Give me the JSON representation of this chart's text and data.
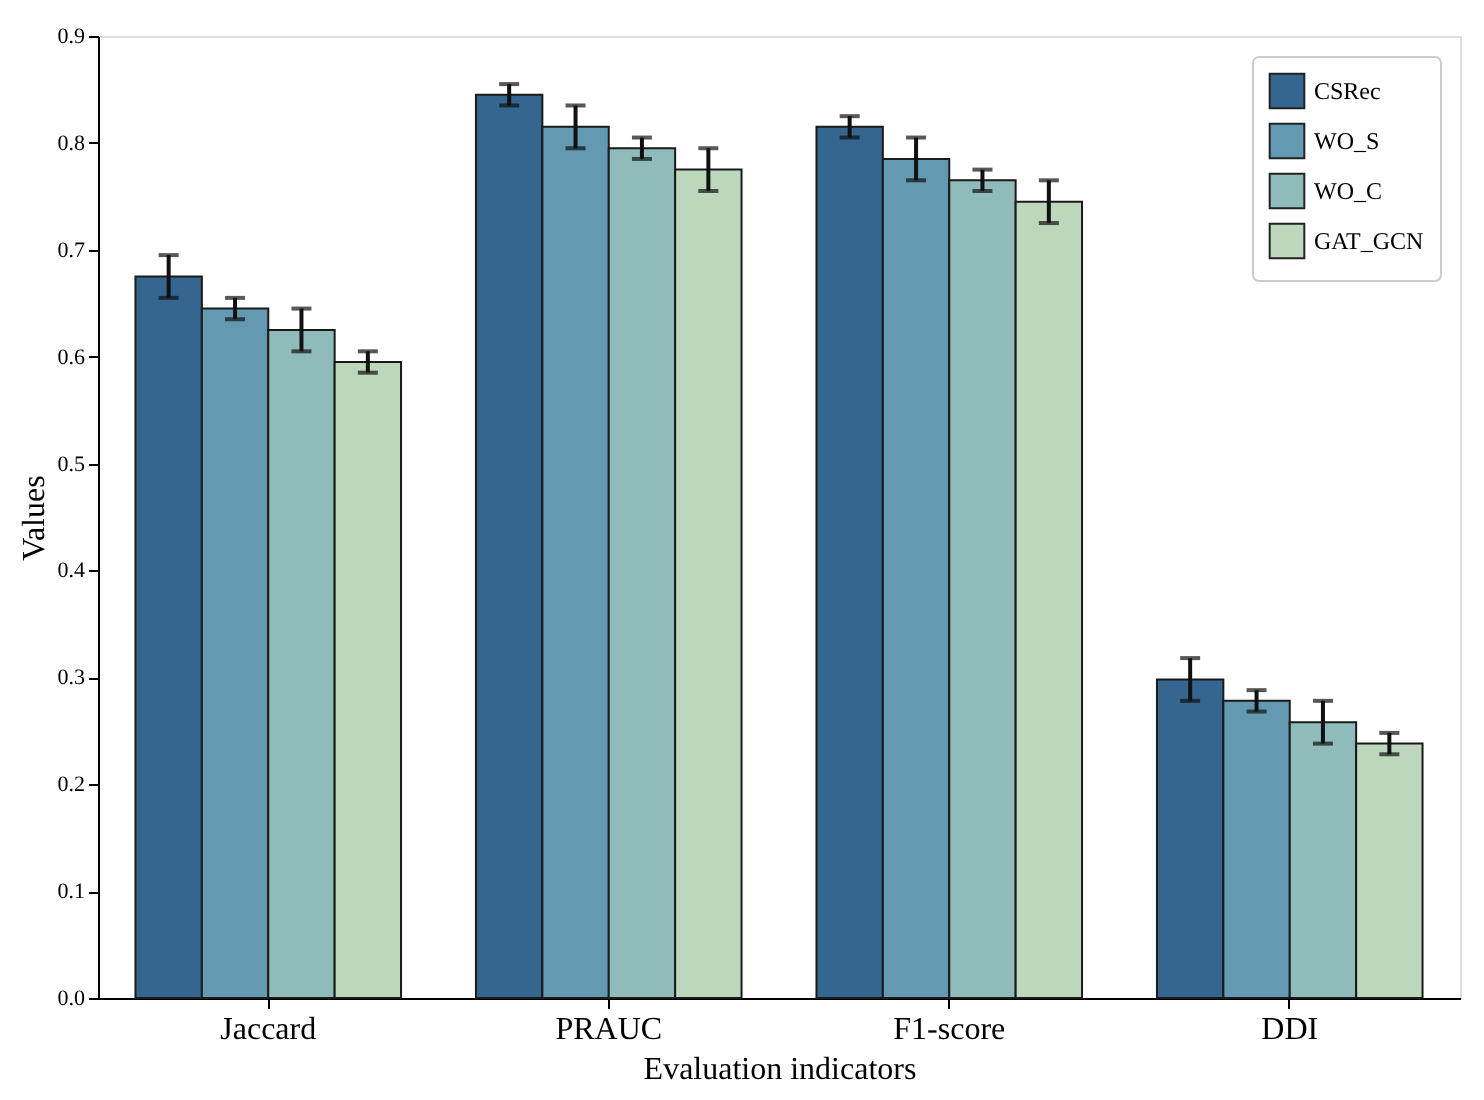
{
  "chart_data": {
    "type": "bar",
    "xlabel": "Evaluation indicators",
    "ylabel": "Values",
    "categories": [
      "Jaccard",
      "PRAUC",
      "F1-score",
      "DDI"
    ],
    "series": [
      {
        "name": "CSRec",
        "color": "#35668f",
        "values": [
          0.675,
          0.845,
          0.815,
          0.298
        ],
        "errors": [
          0.02,
          0.01,
          0.01,
          0.02
        ]
      },
      {
        "name": "WO_S",
        "color": "#6399b1",
        "values": [
          0.645,
          0.815,
          0.785,
          0.278
        ],
        "errors": [
          0.01,
          0.02,
          0.02,
          0.01
        ]
      },
      {
        "name": "WO_C",
        "color": "#8fbcbb",
        "values": [
          0.625,
          0.795,
          0.765,
          0.258
        ],
        "errors": [
          0.02,
          0.01,
          0.01,
          0.02
        ]
      },
      {
        "name": "GAT_GCN",
        "color": "#bcd7bc",
        "values": [
          0.595,
          0.775,
          0.745,
          0.238
        ],
        "errors": [
          0.01,
          0.02,
          0.02,
          0.01
        ]
      }
    ],
    "ylim": [
      0,
      0.9
    ],
    "yticks": [
      {
        "value": 0,
        "label": "0.0"
      },
      {
        "value": 0.1,
        "label": "0.1"
      },
      {
        "value": 0.2,
        "label": "0.2"
      },
      {
        "value": 0.3,
        "label": "0.3"
      },
      {
        "value": 0.4,
        "label": "0.4"
      },
      {
        "value": 0.5,
        "label": "0.5"
      },
      {
        "value": 0.6,
        "label": "0.6"
      },
      {
        "value": 0.7,
        "label": "0.7"
      },
      {
        "value": 0.8,
        "label": "0.8"
      },
      {
        "value": 0.9,
        "label": "0.9"
      }
    ],
    "grid": false,
    "legend": "top right"
  }
}
